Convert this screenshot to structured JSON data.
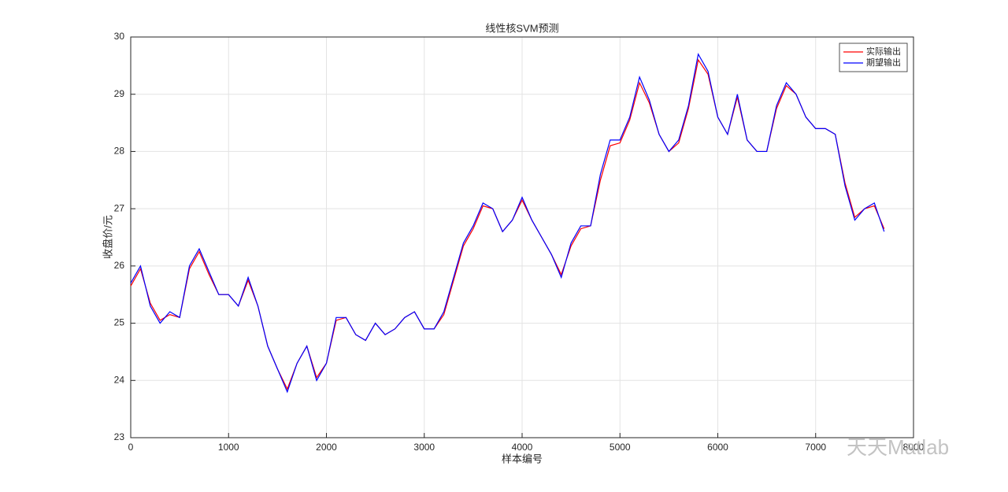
{
  "chart_data": {
    "type": "line",
    "title": "线性核SVM预测",
    "x_label": "样本编号",
    "y_label": "收盘价/元",
    "watermark": "天天Matlab",
    "x": [
      0,
      100,
      200,
      300,
      400,
      500,
      600,
      700,
      800,
      900,
      1000,
      1100,
      1200,
      1300,
      1400,
      1500,
      1600,
      1700,
      1800,
      1900,
      2000,
      2100,
      2200,
      2300,
      2400,
      2500,
      2600,
      2700,
      2800,
      2900,
      3000,
      3100,
      3200,
      3300,
      3400,
      3500,
      3600,
      3700,
      3800,
      3900,
      4000,
      4100,
      4200,
      4300,
      4400,
      4500,
      4600,
      4700,
      4800,
      4900,
      5000,
      5100,
      5200,
      5300,
      5400,
      5500,
      5600,
      5700,
      5800,
      5900,
      6000,
      6100,
      6200,
      6300,
      6400,
      6500,
      6600,
      6700,
      6800,
      6900,
      7000,
      7100,
      7200,
      7300,
      7400,
      7500,
      7600,
      7700
    ],
    "series": [
      {
        "name": "实际输出",
        "color": "#ff0000",
        "values": [
          25.65,
          25.95,
          25.35,
          25.05,
          25.15,
          25.1,
          25.95,
          26.25,
          25.85,
          25.5,
          25.5,
          25.3,
          25.75,
          25.3,
          24.6,
          24.2,
          23.85,
          24.3,
          24.6,
          24.05,
          24.3,
          25.05,
          25.1,
          24.8,
          24.7,
          25.0,
          24.8,
          24.9,
          25.1,
          25.2,
          24.9,
          24.9,
          25.15,
          25.75,
          26.35,
          26.65,
          27.05,
          27.0,
          26.6,
          26.8,
          27.15,
          26.8,
          26.5,
          26.2,
          25.85,
          26.35,
          26.65,
          26.7,
          27.5,
          28.1,
          28.15,
          28.55,
          29.2,
          28.85,
          28.3,
          28.0,
          28.15,
          28.75,
          29.6,
          29.35,
          28.6,
          28.3,
          28.95,
          28.2,
          28.0,
          28.0,
          28.75,
          29.15,
          29.0,
          28.6,
          28.4,
          28.4,
          28.3,
          27.45,
          26.85,
          27.0,
          27.05,
          26.65
        ]
      },
      {
        "name": "期望输出",
        "color": "#0000ff",
        "values": [
          25.7,
          26.0,
          25.3,
          25.0,
          25.2,
          25.1,
          26.0,
          26.3,
          25.9,
          25.5,
          25.5,
          25.3,
          25.8,
          25.3,
          24.6,
          24.2,
          23.8,
          24.3,
          24.6,
          24.0,
          24.3,
          25.1,
          25.1,
          24.8,
          24.7,
          25.0,
          24.8,
          24.9,
          25.1,
          25.2,
          24.9,
          24.9,
          25.2,
          25.8,
          26.4,
          26.7,
          27.1,
          27.0,
          26.6,
          26.8,
          27.2,
          26.8,
          26.5,
          26.2,
          25.8,
          26.4,
          26.7,
          26.7,
          27.6,
          28.2,
          28.2,
          28.6,
          29.3,
          28.9,
          28.3,
          28.0,
          28.2,
          28.8,
          29.7,
          29.4,
          28.6,
          28.3,
          29.0,
          28.2,
          28.0,
          28.0,
          28.8,
          29.2,
          29.0,
          28.6,
          28.4,
          28.4,
          28.3,
          27.4,
          26.8,
          27.0,
          27.1,
          26.6
        ]
      }
    ],
    "xlim": [
      0,
      8000
    ],
    "xticks": [
      0,
      1000,
      2000,
      3000,
      4000,
      5000,
      6000,
      7000,
      8000
    ],
    "ylim": [
      23,
      30
    ],
    "yticks": [
      23,
      24,
      25,
      26,
      27,
      28,
      29,
      30
    ],
    "grid": true,
    "legend": "northeast"
  }
}
